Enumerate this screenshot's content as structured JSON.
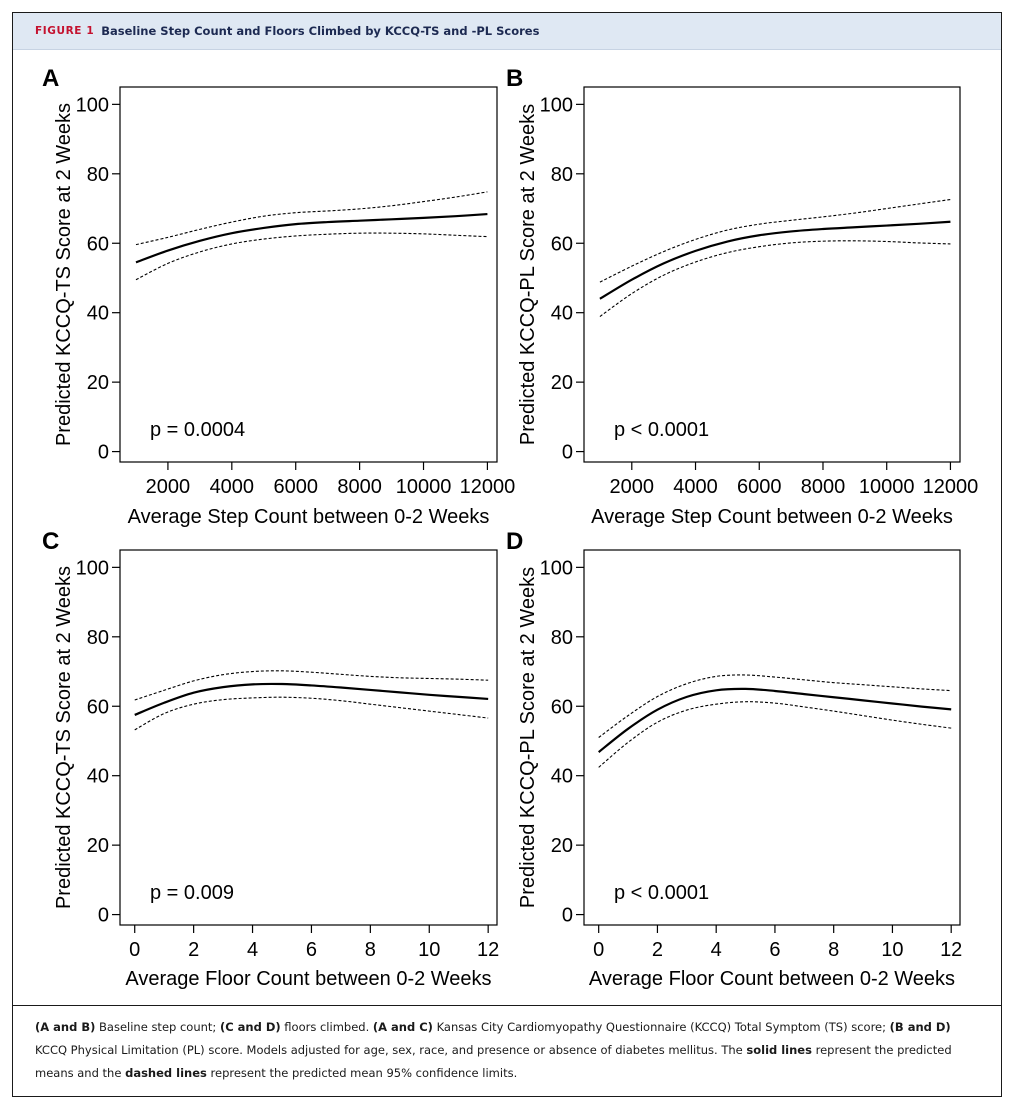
{
  "header": {
    "figure_label": "FIGURE 1",
    "title": "Baseline Step Count and Floors Climbed by KCCQ-TS and -PL Scores"
  },
  "caption": {
    "parts": [
      {
        "text": "(A and B)",
        "bold": true
      },
      {
        "text": " Baseline step count; ",
        "bold": false
      },
      {
        "text": "(C and D)",
        "bold": true
      },
      {
        "text": " floors climbed. ",
        "bold": false
      },
      {
        "text": "(A and C)",
        "bold": true
      },
      {
        "text": " Kansas City Cardiomyopathy Questionnaire (KCCQ) Total Symptom (TS) score; ",
        "bold": false
      },
      {
        "text": "(B and D)",
        "bold": true
      },
      {
        "text": " KCCQ Physical Limitation (PL) score. Models adjusted for age, sex, race, and presence or absence of diabetes mellitus. The ",
        "bold": false
      },
      {
        "text": "solid lines",
        "bold": true
      },
      {
        "text": " represent the predicted means and the ",
        "bold": false
      },
      {
        "text": "dashed lines",
        "bold": true
      },
      {
        "text": " represent the predicted mean 95% confidence limits.",
        "bold": false
      }
    ]
  },
  "chart_data": [
    {
      "panel": "A",
      "type": "line",
      "xlabel": "Average Step Count between 0-2 Weeks",
      "ylabel": "Predicted KCCQ-TS Score at 2 Weeks",
      "xlim": [
        500,
        12300
      ],
      "ylim": [
        -3,
        105
      ],
      "xticks": [
        2000,
        4000,
        6000,
        8000,
        10000,
        12000
      ],
      "yticks": [
        0,
        20,
        40,
        60,
        80,
        100
      ],
      "annotation": "p = 0.0004",
      "grid": false,
      "x": [
        1000,
        2000,
        3000,
        4000,
        5000,
        6000,
        7000,
        8000,
        9000,
        10000,
        11000,
        12000
      ],
      "series": [
        {
          "style": "solid",
          "values": [
            54.5,
            57.9,
            60.7,
            62.9,
            64.4,
            65.5,
            66.1,
            66.5,
            66.9,
            67.3,
            67.8,
            68.4
          ]
        },
        {
          "style": "dashed",
          "values": [
            59.6,
            61.7,
            64.0,
            66.1,
            67.8,
            68.8,
            69.3,
            69.9,
            70.8,
            72.0,
            73.3,
            74.8
          ]
        },
        {
          "style": "dashed",
          "values": [
            49.5,
            54.2,
            57.5,
            59.8,
            61.2,
            62.1,
            62.6,
            62.9,
            62.9,
            62.7,
            62.3,
            61.9
          ]
        }
      ]
    },
    {
      "panel": "B",
      "type": "line",
      "xlabel": "Average Step Count between 0-2 Weeks",
      "ylabel": "Predicted KCCQ-PL Score at 2 Weeks",
      "xlim": [
        500,
        12300
      ],
      "ylim": [
        -3,
        105
      ],
      "xticks": [
        2000,
        4000,
        6000,
        8000,
        10000,
        12000
      ],
      "yticks": [
        0,
        20,
        40,
        60,
        80,
        100
      ],
      "annotation": "p < 0.0001",
      "grid": false,
      "x": [
        1000,
        2000,
        3000,
        4000,
        5000,
        6000,
        7000,
        8000,
        9000,
        10000,
        11000,
        12000
      ],
      "series": [
        {
          "style": "solid",
          "values": [
            44.0,
            49.5,
            54.2,
            57.8,
            60.5,
            62.3,
            63.4,
            64.1,
            64.6,
            65.1,
            65.6,
            66.2
          ]
        },
        {
          "style": "dashed",
          "values": [
            48.8,
            53.4,
            57.6,
            61.1,
            63.8,
            65.5,
            66.6,
            67.6,
            68.7,
            70.0,
            71.3,
            72.6
          ]
        },
        {
          "style": "dashed",
          "values": [
            38.9,
            45.5,
            50.8,
            54.6,
            57.3,
            59.0,
            60.1,
            60.6,
            60.7,
            60.5,
            60.1,
            59.8
          ]
        }
      ]
    },
    {
      "panel": "C",
      "type": "line",
      "xlabel": "Average Floor Count between 0-2 Weeks",
      "ylabel": "Predicted KCCQ-TS Score at 2 Weeks",
      "xlim": [
        -0.5,
        12.3
      ],
      "ylim": [
        -3,
        105
      ],
      "xticks": [
        0,
        2,
        4,
        6,
        8,
        10,
        12
      ],
      "yticks": [
        0,
        20,
        40,
        60,
        80,
        100
      ],
      "annotation": "p = 0.009",
      "grid": false,
      "x": [
        0,
        1,
        2,
        3,
        4,
        5,
        6,
        7,
        8,
        9,
        10,
        11,
        12
      ],
      "series": [
        {
          "style": "solid",
          "values": [
            57.5,
            61.0,
            63.9,
            65.5,
            66.3,
            66.4,
            66.0,
            65.4,
            64.7,
            64.0,
            63.3,
            62.7,
            62.1
          ]
        },
        {
          "style": "dashed",
          "values": [
            61.8,
            64.6,
            67.3,
            69.1,
            70.0,
            70.2,
            69.8,
            69.2,
            68.6,
            68.2,
            68.0,
            67.8,
            67.5
          ]
        },
        {
          "style": "dashed",
          "values": [
            53.2,
            57.9,
            60.6,
            61.9,
            62.4,
            62.6,
            62.3,
            61.6,
            60.6,
            59.6,
            58.6,
            57.6,
            56.6
          ]
        }
      ]
    },
    {
      "panel": "D",
      "type": "line",
      "xlabel": "Average Floor Count between 0-2 Weeks",
      "ylabel": "Predicted KCCQ-PL Score at 2 Weeks",
      "xlim": [
        -0.5,
        12.3
      ],
      "ylim": [
        -3,
        105
      ],
      "xticks": [
        0,
        2,
        4,
        6,
        8,
        10,
        12
      ],
      "yticks": [
        0,
        20,
        40,
        60,
        80,
        100
      ],
      "annotation": "p < 0.0001",
      "grid": false,
      "x": [
        0,
        1,
        2,
        3,
        4,
        5,
        6,
        7,
        8,
        9,
        10,
        11,
        12
      ],
      "series": [
        {
          "style": "solid",
          "values": [
            46.8,
            53.5,
            59.0,
            62.7,
            64.6,
            65.0,
            64.4,
            63.5,
            62.6,
            61.7,
            60.8,
            59.9,
            59.1
          ]
        },
        {
          "style": "dashed",
          "values": [
            51.0,
            57.3,
            62.8,
            66.5,
            68.6,
            69.0,
            68.4,
            67.6,
            66.8,
            66.2,
            65.6,
            65.0,
            64.5
          ]
        },
        {
          "style": "dashed",
          "values": [
            42.4,
            49.6,
            55.4,
            58.9,
            60.6,
            61.3,
            60.9,
            59.8,
            58.6,
            57.3,
            56.0,
            54.8,
            53.7
          ]
        }
      ]
    }
  ]
}
